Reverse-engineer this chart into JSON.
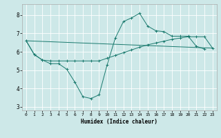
{
  "title": "",
  "xlabel": "Humidex (Indice chaleur)",
  "bg_color": "#cde8e8",
  "grid_color": "#ffffff",
  "line_color": "#1a7a6e",
  "xlim": [
    -0.5,
    23.5
  ],
  "ylim": [
    2.8,
    8.6
  ],
  "yticks": [
    3,
    4,
    5,
    6,
    7,
    8
  ],
  "xticks": [
    0,
    1,
    2,
    3,
    4,
    5,
    6,
    7,
    8,
    9,
    10,
    11,
    12,
    13,
    14,
    15,
    16,
    17,
    18,
    19,
    20,
    21,
    22,
    23
  ],
  "curve1_x": [
    0,
    1,
    2,
    3,
    4,
    5,
    6,
    7,
    8,
    9,
    10,
    11,
    12,
    13,
    14,
    15,
    16,
    17,
    18,
    19,
    20,
    21,
    22
  ],
  "curve1_y": [
    6.6,
    5.85,
    5.55,
    5.35,
    5.35,
    5.05,
    4.35,
    3.55,
    3.45,
    3.65,
    5.3,
    6.75,
    7.65,
    7.85,
    8.1,
    7.4,
    7.15,
    7.1,
    6.85,
    6.85,
    6.85,
    6.3,
    6.15
  ],
  "curve2_x": [
    0,
    1,
    2,
    3,
    4,
    5,
    6,
    7,
    8,
    9,
    10,
    11,
    12,
    13,
    14,
    15,
    16,
    17,
    18,
    19,
    20,
    21,
    22,
    23
  ],
  "curve2_y": [
    6.6,
    5.85,
    5.55,
    5.5,
    5.5,
    5.5,
    5.5,
    5.5,
    5.5,
    5.5,
    5.65,
    5.8,
    5.95,
    6.1,
    6.25,
    6.38,
    6.48,
    6.58,
    6.68,
    6.75,
    6.82,
    6.82,
    6.82,
    6.2
  ],
  "curve3_x": [
    0,
    23
  ],
  "curve3_y": [
    6.6,
    6.2
  ]
}
